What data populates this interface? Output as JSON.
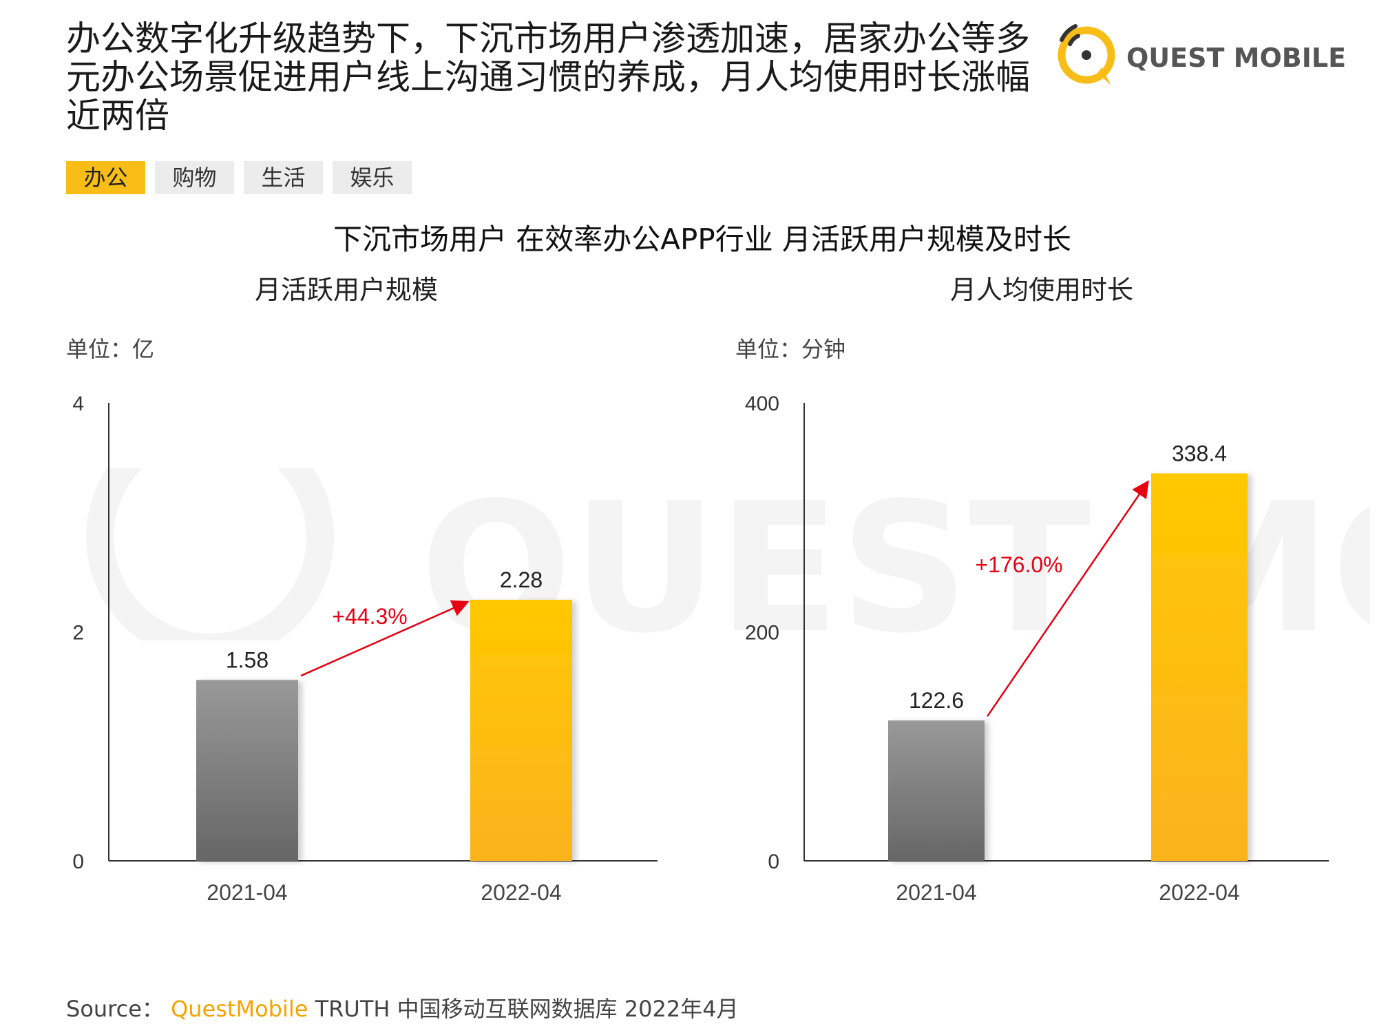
{
  "headline": "办公数字化升级趋势下，下沉市场用户渗透加速，居家办公等多元办公场景促进用户线上沟通习惯的养成，月人均使用时长涨幅近两倍",
  "logo": {
    "text": "QUEST MOBILE",
    "accent": "#f8bd16"
  },
  "watermark": {
    "text": "QUEST MOBILE"
  },
  "tabs": [
    "办公",
    "购物",
    "生活",
    "娱乐"
  ],
  "active_tab": "办公",
  "main_title": "下沉市场用户 在效率办公APP行业 月活跃用户规模及时长",
  "colors": {
    "bar_2021": "#808080",
    "bar_2022": "#f8b51a",
    "growth": "#e60012"
  },
  "source": {
    "label": "Source：",
    "brand": "QuestMobile",
    "rest": "TRUTH 中国移动互联网数据库 2022年4月"
  },
  "chart_data": [
    {
      "type": "bar",
      "title": "月活跃用户规模",
      "unit": "单位：亿",
      "categories": [
        "2021-04",
        "2022-04"
      ],
      "values": [
        1.58,
        2.28
      ],
      "value_labels": [
        "1.58",
        "2.28"
      ],
      "ylim": [
        0,
        4
      ],
      "yticks": [
        0,
        2,
        4
      ],
      "ytick_labels": [
        "0",
        "2",
        "4"
      ],
      "growth_label": "+44.3%"
    },
    {
      "type": "bar",
      "title": "月人均使用时长",
      "unit": "单位：分钟",
      "categories": [
        "2021-04",
        "2022-04"
      ],
      "values": [
        122.6,
        338.4
      ],
      "value_labels": [
        "122.6",
        "338.4"
      ],
      "ylim": [
        0,
        400
      ],
      "yticks": [
        0,
        200,
        400
      ],
      "ytick_labels": [
        "0",
        "200",
        "400"
      ],
      "growth_label": "+176.0%"
    }
  ]
}
